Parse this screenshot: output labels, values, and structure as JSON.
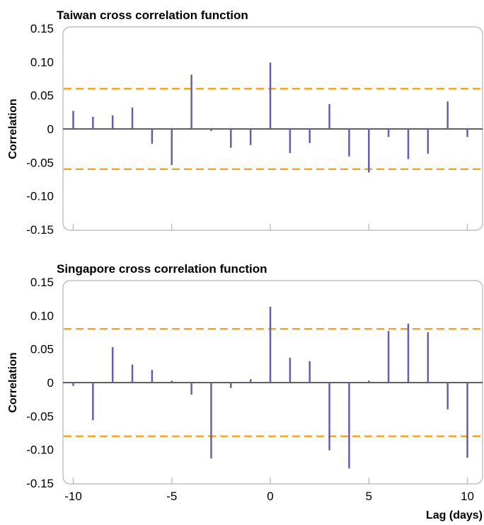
{
  "chart_data": [
    {
      "type": "bar",
      "title": "Taiwan cross correlation function",
      "ylabel": "Correlation",
      "xlabel": "",
      "x": [
        -10,
        -9,
        -8,
        -7,
        -6,
        -5,
        -4,
        -3,
        -2,
        -1,
        0,
        1,
        2,
        3,
        4,
        5,
        6,
        7,
        8,
        9,
        10
      ],
      "values": [
        0.027,
        0.018,
        0.02,
        0.032,
        -0.022,
        -0.054,
        0.081,
        -0.003,
        -0.028,
        -0.024,
        0.099,
        -0.036,
        -0.021,
        0.037,
        -0.041,
        -0.065,
        -0.012,
        -0.045,
        -0.037,
        0.041,
        -0.012
      ],
      "confidence_bound": 0.06,
      "ylim": [
        -0.15,
        0.15
      ],
      "xlim": [
        -10,
        10
      ],
      "y_ticks": [
        "0.15",
        "0.10",
        "0.05",
        "0",
        "-0.05",
        "-0.10",
        "-0.15"
      ],
      "y_tick_values": [
        0.15,
        0.1,
        0.05,
        0,
        -0.05,
        -0.1,
        -0.15
      ],
      "x_tick_values": [
        -10,
        -5,
        0,
        5,
        10
      ],
      "x_tick_labels": [],
      "colors": {
        "bar": "#6a5cae",
        "bound": "#f2a72c",
        "zero_line": "#000000",
        "frame": "#b4b4b4"
      }
    },
    {
      "type": "bar",
      "title": "Singapore cross correlation function",
      "ylabel": "Correlation",
      "xlabel": "Lag (days)",
      "x": [
        -10,
        -9,
        -8,
        -7,
        -6,
        -5,
        -4,
        -3,
        -2,
        -1,
        0,
        1,
        2,
        3,
        4,
        5,
        6,
        7,
        8,
        9,
        10
      ],
      "values": [
        -0.005,
        -0.056,
        0.053,
        0.027,
        0.019,
        0.003,
        -0.018,
        -0.113,
        -0.008,
        0.005,
        0.113,
        0.037,
        0.032,
        -0.101,
        -0.128,
        0.003,
        0.077,
        0.088,
        0.075,
        -0.04,
        -0.112
      ],
      "confidence_bound": 0.08,
      "ylim": [
        -0.15,
        0.15
      ],
      "xlim": [
        -10,
        10
      ],
      "y_ticks": [
        "0.15",
        "0.10",
        "0.05",
        "0",
        "-0.05",
        "-0.10",
        "-0.15"
      ],
      "y_tick_values": [
        0.15,
        0.1,
        0.05,
        0,
        -0.05,
        -0.1,
        -0.15
      ],
      "x_tick_values": [
        -10,
        -5,
        0,
        5,
        10
      ],
      "x_tick_labels": [
        "-10",
        "-5",
        "0",
        "5",
        "10"
      ],
      "colors": {
        "bar": "#6a5cae",
        "bound": "#f2a72c",
        "zero_line": "#000000",
        "frame": "#b4b4b4"
      }
    }
  ]
}
